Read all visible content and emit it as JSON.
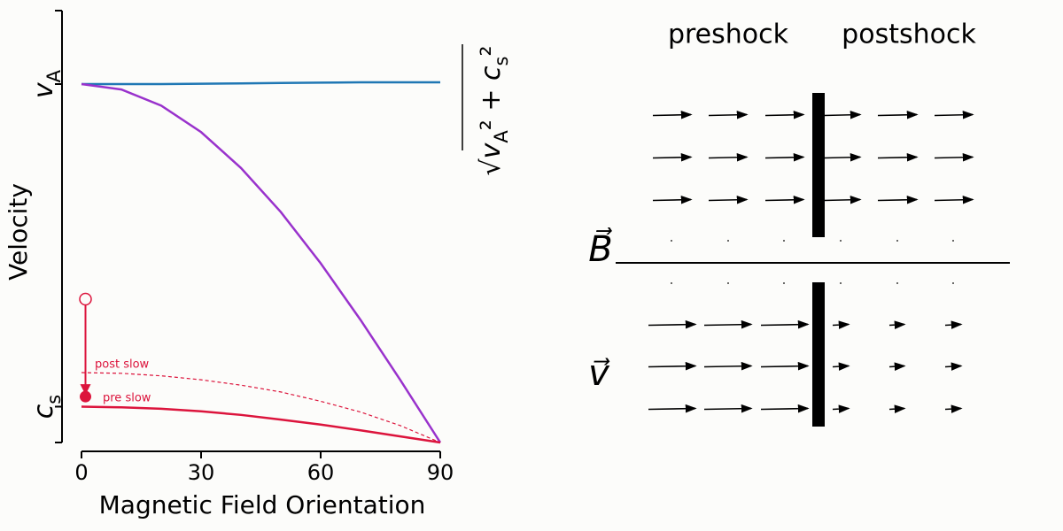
{
  "chart_data": {
    "type": "line",
    "xlabel": "Magnetic Field Orientation",
    "ylabel": "Velocity",
    "x": [
      0,
      10,
      20,
      30,
      40,
      50,
      60,
      70,
      80,
      90
    ],
    "xlim": [
      0,
      90
    ],
    "xticks": [
      0,
      30,
      60,
      90
    ],
    "ylim": [
      0,
      1.2
    ],
    "yticks": [
      {
        "value": 0.1,
        "label": "cs"
      },
      {
        "value": 1,
        "label": "vA"
      }
    ],
    "series": [
      {
        "color": "#1f77b4",
        "style": "solid",
        "values": [
          1,
          1,
          1,
          1.001,
          1.002,
          1.003,
          1.004,
          1.005,
          1.005,
          1.005
        ]
      },
      {
        "color": "#9932cc",
        "style": "solid",
        "values": [
          1,
          0.985,
          0.94,
          0.866,
          0.766,
          0.643,
          0.5,
          0.342,
          0.174,
          0
        ]
      },
      {
        "color": "#dc143c",
        "style": "solid",
        "values": [
          0.1,
          0.098,
          0.094,
          0.087,
          0.077,
          0.064,
          0.05,
          0.034,
          0.017,
          0
        ]
      },
      {
        "color": "#dc143c",
        "style": "dashed",
        "values": [
          0.195,
          0.193,
          0.186,
          0.175,
          0.16,
          0.141,
          0.115,
          0.085,
          0.047,
          0
        ]
      }
    ],
    "transition": {
      "x": 1,
      "from": 0.4,
      "to": 0.128,
      "color": "#dc143c"
    },
    "annotations": [
      "post slow",
      "pre slow"
    ],
    "fast_label": "√vA² + cs²"
  },
  "diagram": {
    "columns": [
      "preshock",
      "postshock"
    ],
    "field_label": "B⃗",
    "velocity_label": "v⃗"
  }
}
